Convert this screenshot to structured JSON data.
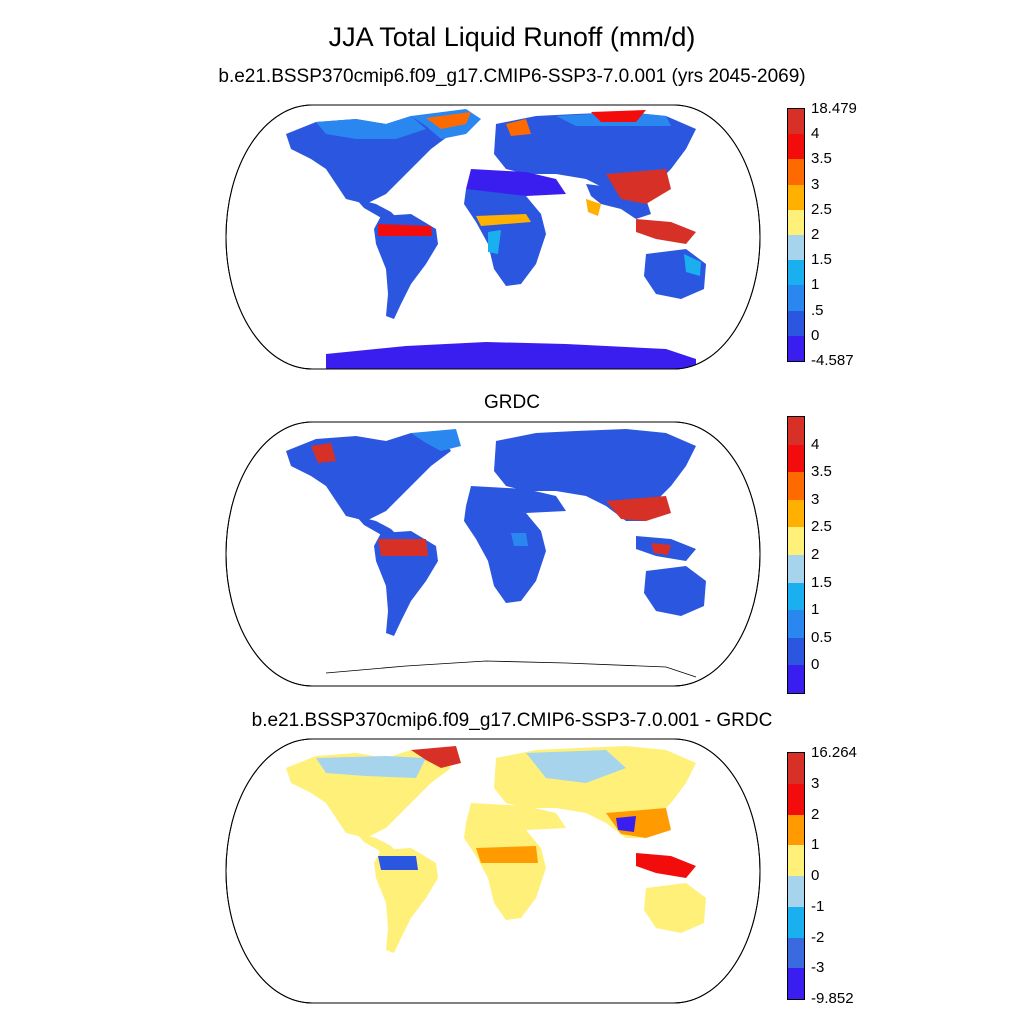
{
  "title": "JJA Total Liquid Runoff (mm/d)",
  "panels": [
    {
      "title": "b.e21.BSSP370cmip6.f09_g17.CMIP6-SSP3-7.0.001 (yrs 2045-2069)",
      "colorbar": {
        "colors": [
          "#d73027",
          "#f20c0c",
          "#ff6a00",
          "#ffb000",
          "#fff07a",
          "#a6d4ec",
          "#1ab0f0",
          "#2b87f0",
          "#2b56e0",
          "#3a1ef0"
        ],
        "labels": [
          "18.479",
          "4",
          "3.5",
          "3",
          "2.5",
          "2",
          "1.5",
          "1",
          ".5",
          "0",
          "-4.587"
        ]
      }
    },
    {
      "title": "GRDC",
      "colorbar": {
        "colors": [
          "#d73027",
          "#f20c0c",
          "#ff6a00",
          "#ffb000",
          "#fff07a",
          "#a6d4ec",
          "#1ab0f0",
          "#2b87f0",
          "#2b56e0",
          "#3a1ef0"
        ],
        "labels": [
          "4",
          "3.5",
          "3",
          "2.5",
          "2",
          "1.5",
          "1",
          "0.5",
          "0"
        ]
      }
    },
    {
      "title": "b.e21.BSSP370cmip6.f09_g17.CMIP6-SSP3-7.0.001 - GRDC",
      "colorbar": {
        "colors": [
          "#d73027",
          "#f20c0c",
          "#ff9a00",
          "#fff07a",
          "#a6d4ec",
          "#1ab0f0",
          "#3a6ae0",
          "#3a1ef0"
        ],
        "labels": [
          "16.264",
          "3",
          "2",
          "1",
          "0",
          "-1",
          "-2",
          "-3",
          "-9.852"
        ]
      }
    }
  ]
}
